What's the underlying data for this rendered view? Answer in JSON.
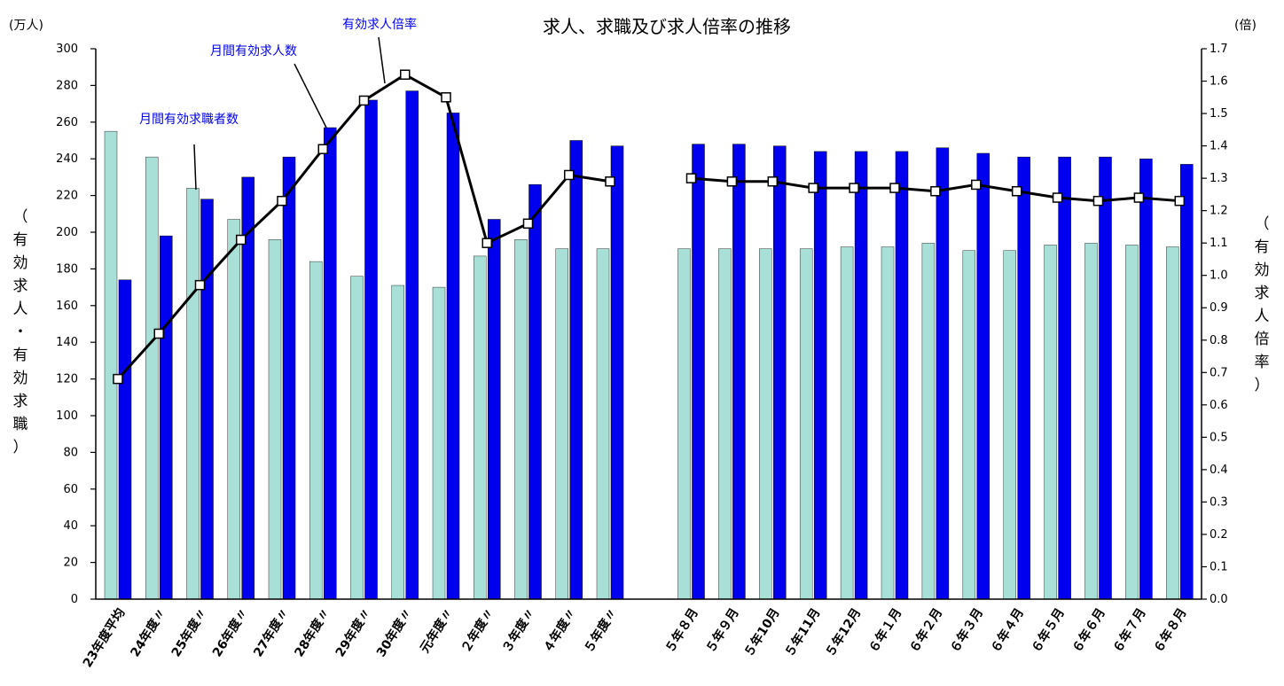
{
  "chart_data": {
    "type": "bar",
    "title": "求人、求職及び求人倍率の推移",
    "left_unit": "(万人)",
    "right_unit": "(倍)",
    "left_axis_label": "（有効求人・有効求職）",
    "right_axis_label": "（有効求人倍率）",
    "categories": [
      "23年度平均",
      "24年度〃",
      "25年度〃",
      "26年度〃",
      "27年度〃",
      "28年度〃",
      "29年度〃",
      "30年度〃",
      "元年度〃",
      "２年度〃",
      "３年度〃",
      "４年度〃",
      "５年度〃",
      "５年８月",
      "５年９月",
      "５年10月",
      "５年11月",
      "５年12月",
      "６年１月",
      "６年２月",
      "６年３月",
      "６年４月",
      "６年５月",
      "６年６月",
      "６年７月",
      "６年８月"
    ],
    "y_left": {
      "min": 0,
      "max": 300,
      "step": 20,
      "ticks": [
        "0",
        "20",
        "40",
        "60",
        "80",
        "100",
        "120",
        "140",
        "160",
        "180",
        "200",
        "220",
        "240",
        "260",
        "280",
        "300"
      ]
    },
    "y_right": {
      "min": 0,
      "max": 1.7,
      "step": 0.1,
      "ticks": [
        "0.0",
        "0.1",
        "0.2",
        "0.3",
        "0.4",
        "0.5",
        "0.6",
        "0.7",
        "0.8",
        "0.9",
        "1.0",
        "1.1",
        "1.2",
        "1.3",
        "1.4",
        "1.5",
        "1.6",
        "1.7"
      ]
    },
    "series": [
      {
        "name": "月間有効求職者数",
        "type": "bar",
        "axis": "left",
        "color": "#a8e0d8",
        "values": [
          255,
          241,
          224,
          207,
          196,
          184,
          176,
          171,
          170,
          187,
          196,
          191,
          191,
          191,
          191,
          191,
          191,
          192,
          192,
          194,
          190,
          190,
          193,
          194,
          193,
          192
        ]
      },
      {
        "name": "月間有効求人数",
        "type": "bar",
        "axis": "left",
        "color": "#0000ee",
        "values": [
          174,
          198,
          218,
          230,
          241,
          257,
          272,
          277,
          265,
          207,
          226,
          250,
          247,
          248,
          248,
          247,
          244,
          244,
          244,
          246,
          243,
          241,
          241,
          241,
          240,
          237
        ]
      },
      {
        "name": "有効求人倍率",
        "type": "line",
        "axis": "right",
        "color": "#000000",
        "values": [
          0.68,
          0.82,
          0.97,
          1.11,
          1.23,
          1.39,
          1.54,
          1.62,
          1.55,
          1.1,
          1.16,
          1.31,
          1.29,
          1.3,
          1.29,
          1.29,
          1.27,
          1.27,
          1.27,
          1.26,
          1.28,
          1.26,
          1.24,
          1.23,
          1.24,
          1.23
        ]
      }
    ],
    "grid": false
  }
}
